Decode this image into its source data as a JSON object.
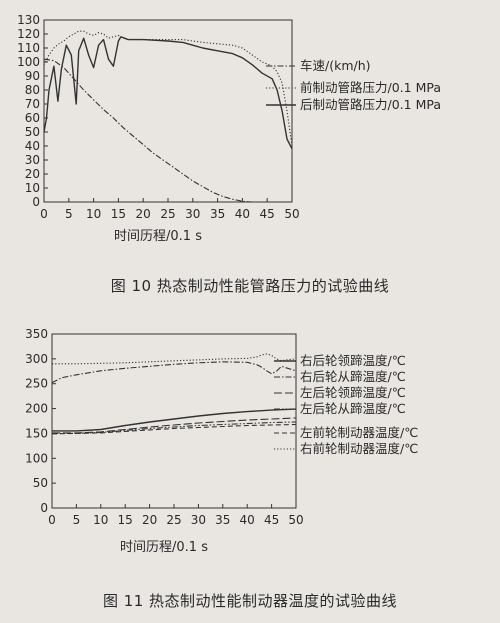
{
  "figure10": {
    "caption": "图 10   热态制动性能管路压力的试验曲线"
  },
  "figure11": {
    "caption": "图 11   热态制动性能制动器温度的试验曲线"
  },
  "chart_data": [
    {
      "type": "line",
      "xlabel": "时间历程/0.1 s",
      "ylabel": "",
      "xlim": [
        0,
        50
      ],
      "ylim": [
        0,
        130
      ],
      "xticks": [
        0,
        5,
        10,
        15,
        20,
        25,
        30,
        35,
        40,
        45,
        50
      ],
      "yticks": [
        0,
        10,
        20,
        30,
        40,
        50,
        60,
        70,
        80,
        90,
        100,
        110,
        120,
        130
      ],
      "legend_placement": "right",
      "series": [
        {
          "name": "车速/(km/h)",
          "style": "dashdot",
          "x": [
            0,
            2,
            4,
            6,
            8,
            10,
            12,
            14,
            16,
            18,
            20,
            22,
            24,
            26,
            28,
            30,
            32,
            34,
            36,
            38,
            40,
            42,
            44
          ],
          "values": [
            102,
            101,
            96,
            88,
            80,
            73,
            66,
            60,
            53,
            47,
            41,
            35,
            30,
            25,
            20,
            15,
            11,
            7,
            4,
            2,
            0.5,
            0,
            0
          ]
        },
        {
          "name": "前制动管路压力/0.1 MPa",
          "style": "dotted",
          "x": [
            0,
            1,
            2,
            3,
            4,
            5,
            6,
            7,
            8,
            9,
            10,
            11,
            12,
            13,
            14,
            15,
            16,
            17,
            18,
            20,
            22,
            25,
            28,
            30,
            32,
            35,
            38,
            40,
            42,
            44,
            46,
            47,
            48,
            49,
            50
          ],
          "values": [
            98,
            105,
            110,
            113,
            115,
            118,
            120,
            122,
            122,
            120,
            119,
            121,
            120,
            117,
            118,
            119,
            117,
            116,
            116,
            116,
            116,
            116,
            116,
            115,
            114,
            113,
            112,
            110,
            105,
            100,
            97,
            93,
            85,
            65,
            40
          ]
        },
        {
          "name": "后制动管路压力/0.1 MPa",
          "style": "solid",
          "x": [
            0,
            0.5,
            1,
            2,
            2.8,
            3.5,
            4.5,
            5.5,
            6.5,
            7,
            8,
            9,
            10,
            11,
            12,
            13,
            14,
            15,
            15.5,
            17,
            18,
            20,
            25,
            28,
            30,
            32,
            35,
            38,
            40,
            42,
            44,
            46,
            47,
            48,
            49,
            50
          ],
          "values": [
            50,
            60,
            80,
            97,
            72,
            95,
            112,
            105,
            70,
            108,
            117,
            105,
            96,
            112,
            116,
            102,
            97,
            115,
            118,
            116,
            116,
            116,
            115,
            114,
            112,
            110,
            108,
            106,
            103,
            98,
            92,
            88,
            80,
            65,
            45,
            38
          ]
        }
      ]
    },
    {
      "type": "line",
      "xlabel": "时间历程/0.1 s",
      "ylabel": "",
      "xlim": [
        0,
        50
      ],
      "ylim": [
        0,
        350
      ],
      "xticks": [
        0,
        5,
        10,
        15,
        20,
        25,
        30,
        35,
        40,
        45,
        50
      ],
      "yticks": [
        0,
        50,
        100,
        150,
        200,
        250,
        300,
        350
      ],
      "legend_placement": "right",
      "series": [
        {
          "name": "右后轮领蹄温度/℃",
          "style": "solid",
          "x": [
            0,
            5,
            10,
            15,
            20,
            25,
            30,
            35,
            40,
            45,
            50
          ],
          "values": [
            155,
            155,
            158,
            166,
            173,
            179,
            185,
            190,
            194,
            197,
            199
          ]
        },
        {
          "name": "右后轮从蹄温度/℃",
          "style": "dashdot",
          "x": [
            0,
            2,
            5,
            10,
            15,
            20,
            25,
            30,
            35,
            40,
            42,
            43,
            44,
            45,
            46,
            47,
            48,
            50
          ],
          "values": [
            252,
            262,
            268,
            276,
            281,
            285,
            289,
            292,
            294,
            293,
            288,
            283,
            276,
            270,
            275,
            285,
            282,
            276
          ]
        },
        {
          "name": "左后轮领蹄温度/℃",
          "style": "longdash",
          "x": [
            0,
            5,
            10,
            15,
            20,
            25,
            30,
            35,
            40,
            45,
            50
          ],
          "values": [
            151,
            151,
            153,
            158,
            163,
            167,
            171,
            174,
            177,
            179,
            181
          ]
        },
        {
          "name": "左后轮从蹄温度/℃",
          "style": "dashdotdot",
          "x": [
            0,
            5,
            10,
            15,
            20,
            25,
            30,
            35,
            40,
            45,
            50
          ],
          "values": [
            150,
            150,
            152,
            156,
            160,
            163,
            166,
            168,
            170,
            172,
            173
          ]
        },
        {
          "name": "左前轮制动器温度/℃",
          "style": "dashed",
          "x": [
            0,
            5,
            10,
            15,
            20,
            25,
            30,
            35,
            40,
            45,
            50
          ],
          "values": [
            149,
            150,
            151,
            154,
            157,
            160,
            162,
            164,
            166,
            167,
            168
          ]
        },
        {
          "name": "右前轮制动器温度/℃",
          "style": "dotted",
          "x": [
            0,
            5,
            10,
            15,
            20,
            25,
            30,
            35,
            40,
            42,
            43,
            44,
            45,
            46,
            47,
            48,
            50
          ],
          "values": [
            290,
            290,
            291,
            292,
            294,
            296,
            298,
            300,
            301,
            304,
            308,
            310,
            307,
            300,
            296,
            298,
            300
          ]
        }
      ]
    }
  ]
}
